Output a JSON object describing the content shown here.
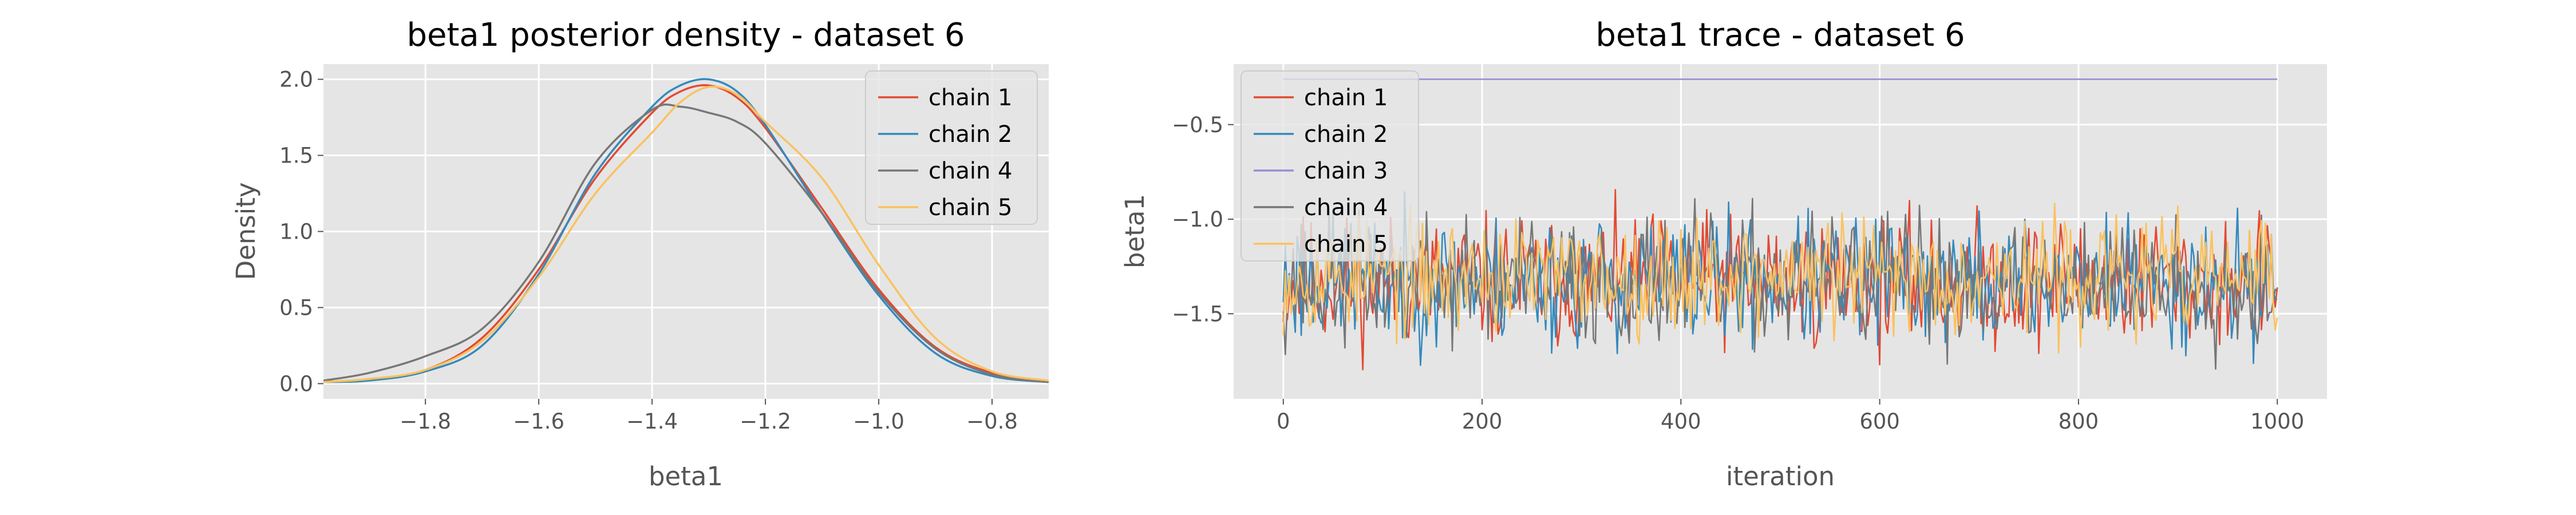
{
  "figure": {
    "background": "#ffffff",
    "axes_bg": "#e5e5e5",
    "grid_color": "#ffffff",
    "tick_label_color": "#555555",
    "text_color": "#000000"
  },
  "chart_data": [
    {
      "type": "line",
      "title": "beta1 posterior density - dataset 6",
      "xlabel": "beta1",
      "ylabel": "Density",
      "xlim": [
        -1.98,
        -0.7
      ],
      "ylim": [
        -0.1,
        2.1
      ],
      "x_ticks": [
        -1.8,
        -1.6,
        -1.4,
        -1.2,
        -1.0,
        -0.8
      ],
      "x_tick_labels": [
        "−1.8",
        "−1.6",
        "−1.4",
        "−1.2",
        "−1.0",
        "−0.8"
      ],
      "y_ticks": [
        0,
        0.5,
        1,
        1.5,
        2
      ],
      "y_tick_labels": [
        "0.0",
        "0.5",
        "1.0",
        "1.5",
        "2.0"
      ],
      "grid": true,
      "legend_position": "top-right",
      "x": [
        -1.98,
        -1.9,
        -1.8,
        -1.7,
        -1.6,
        -1.5,
        -1.4,
        -1.35,
        -1.3,
        -1.25,
        -1.2,
        -1.1,
        -1.0,
        -0.9,
        -0.8,
        -0.7
      ],
      "series": [
        {
          "name": "chain 1",
          "color": "#e24a33",
          "values": [
            0.01,
            0.03,
            0.09,
            0.3,
            0.75,
            1.35,
            1.78,
            1.92,
            1.96,
            1.88,
            1.68,
            1.15,
            0.62,
            0.24,
            0.07,
            0.01
          ]
        },
        {
          "name": "chain 2",
          "color": "#348abd",
          "values": [
            0.01,
            0.02,
            0.08,
            0.25,
            0.72,
            1.38,
            1.82,
            1.96,
            2.0,
            1.92,
            1.7,
            1.12,
            0.58,
            0.2,
            0.05,
            0.01
          ]
        },
        {
          "name": "chain 4",
          "color": "#777777",
          "values": [
            0.02,
            0.07,
            0.18,
            0.36,
            0.8,
            1.45,
            1.8,
            1.82,
            1.78,
            1.72,
            1.58,
            1.12,
            0.6,
            0.23,
            0.06,
            0.01
          ]
        },
        {
          "name": "chain 5",
          "color": "#fbc15e",
          "values": [
            0.01,
            0.03,
            0.09,
            0.28,
            0.7,
            1.25,
            1.65,
            1.85,
            1.95,
            1.9,
            1.72,
            1.35,
            0.78,
            0.3,
            0.08,
            0.02
          ]
        }
      ]
    },
    {
      "type": "line",
      "title": "beta1 trace - dataset 6",
      "xlabel": "iteration",
      "ylabel": "beta1",
      "xlim": [
        -50,
        1050
      ],
      "ylim": [
        -1.95,
        -0.18
      ],
      "x_ticks": [
        0,
        200,
        400,
        600,
        800,
        1000
      ],
      "x_tick_labels": [
        "0",
        "200",
        "400",
        "600",
        "800",
        "1000"
      ],
      "y_ticks": [
        -1.5,
        -1.0,
        -0.5
      ],
      "y_tick_labels": [
        "−1.5",
        "−1.0",
        "−0.5"
      ],
      "grid": true,
      "legend_position": "top-left",
      "x_range": [
        0,
        1000
      ],
      "series": [
        {
          "name": "chain 1",
          "color": "#e24a33",
          "pattern": "noise",
          "mean": -1.33,
          "amplitude": 0.17,
          "seed": 11
        },
        {
          "name": "chain 2",
          "color": "#348abd",
          "pattern": "noise",
          "mean": -1.33,
          "amplitude": 0.17,
          "seed": 23
        },
        {
          "name": "chain 3",
          "color": "#988ed5",
          "pattern": "constant",
          "value": -0.26
        },
        {
          "name": "chain 4",
          "color": "#777777",
          "pattern": "noise",
          "mean": -1.33,
          "amplitude": 0.17,
          "seed": 37
        },
        {
          "name": "chain 5",
          "color": "#fbc15e",
          "pattern": "noise",
          "mean": -1.3,
          "amplitude": 0.15,
          "seed": 53
        }
      ]
    }
  ]
}
